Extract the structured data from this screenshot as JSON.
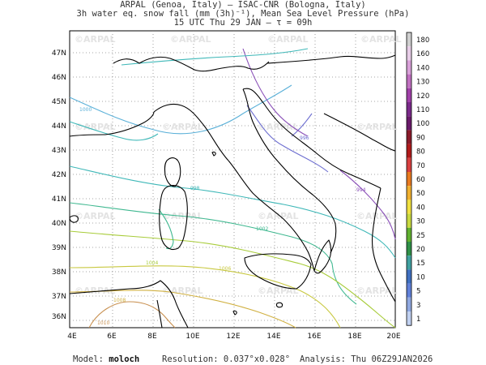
{
  "titles": {
    "line1": "ARPAL (Genoa, Italy)  –  ISAC-CNR (Bologna, Italy)",
    "line2": "3h water eq. snow fall (mm (3h)⁻¹), Mean Sea Level Pressure (hPa)",
    "line3": "15 UTC Thu 29 JAN  –  τ = 09h"
  },
  "map": {
    "lat_labels": [
      "47N",
      "46N",
      "45N",
      "44N",
      "43N",
      "42N",
      "41N",
      "40N",
      "39N",
      "38N",
      "37N",
      "36N"
    ],
    "lon_labels": [
      "4E",
      "6E",
      "8E",
      "10E",
      "12E",
      "14E",
      "16E",
      "18E",
      "20E"
    ],
    "watermark": "©ARPAL"
  },
  "isobars": [
    {
      "label": "1000",
      "color": "#5ab0d8"
    },
    {
      "label": "998",
      "color": "#3fb8b8"
    },
    {
      "label": "996",
      "color": "#6d6ed0"
    },
    {
      "label": "994",
      "color": "#8a50b8"
    },
    {
      "label": "1002",
      "color": "#3fb890"
    },
    {
      "label": "1004",
      "color": "#a8cc3a"
    },
    {
      "label": "1006",
      "color": "#c8c840"
    },
    {
      "label": "1008",
      "color": "#d0b040"
    },
    {
      "label": "1010",
      "color": "#c89050"
    }
  ],
  "colorbar": {
    "labels": [
      "180",
      "160",
      "140",
      "130",
      "120",
      "110",
      "100",
      "90",
      "80",
      "70",
      "60",
      "50",
      "40",
      "30",
      "25",
      "20",
      "15",
      "10",
      "5",
      "3",
      "1"
    ],
    "colors": [
      "#cfcfcf",
      "#e7cde7",
      "#d8a0d8",
      "#c070c0",
      "#a040a8",
      "#7a2a8a",
      "#6a1a6a",
      "#8a1a2a",
      "#b01a1a",
      "#d84040",
      "#e87a20",
      "#f0b030",
      "#f0e040",
      "#c8d840",
      "#60b030",
      "#309048",
      "#40a0a0",
      "#4070c0",
      "#6080d8",
      "#90a8e0",
      "#c0d0f0"
    ]
  },
  "footer": {
    "model_label": "Model:",
    "model_value": "moloch",
    "resolution_label": "Resolution:",
    "resolution_value": "0.037°x0.028°",
    "analysis_label": "Analysis:",
    "analysis_value": "Thu 06Z29JAN2026"
  }
}
